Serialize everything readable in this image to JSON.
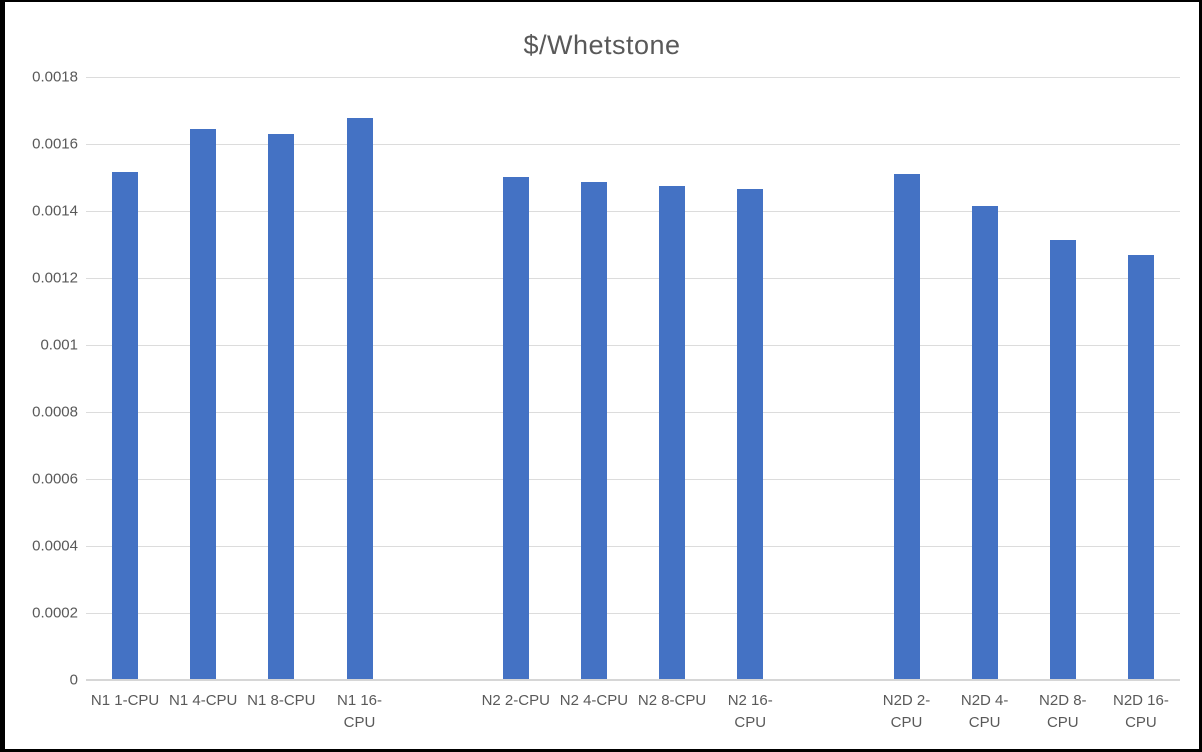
{
  "window": {
    "background_color": "#ffffff",
    "frame_color": "#000000"
  },
  "chart_data": {
    "type": "bar",
    "title": "$/Whetstone",
    "xlabel": "",
    "ylabel": "",
    "legend": "none",
    "grid": true,
    "ylim": [
      0,
      0.0018
    ],
    "ytick_step": 0.0002,
    "ytick_labels": [
      "0",
      "0.0002",
      "0.0004",
      "0.0006",
      "0.0008",
      "0.001",
      "0.0012",
      "0.0014",
      "0.0016",
      "0.0018"
    ],
    "bar_color": "#4472C4",
    "gridline_color": "#DCDCDC",
    "axis_line_color": "#D6D6D6",
    "text_color": "#595959",
    "groups": [
      {
        "name": "N1",
        "categories": [
          "N1 1-CPU",
          "N1 4-CPU",
          "N1 8-CPU",
          "N1 16-CPU"
        ],
        "label_lines": [
          [
            "N1 1-CPU"
          ],
          [
            "N1 4-CPU"
          ],
          [
            "N1 8-CPU"
          ],
          [
            "N1 16-",
            "CPU"
          ]
        ],
        "values": [
          0.001515,
          0.001645,
          0.00163,
          0.001677
        ]
      },
      {
        "name": "N2",
        "categories": [
          "N2 2-CPU",
          "N2 4-CPU",
          "N2 8-CPU",
          "N2 16-CPU"
        ],
        "label_lines": [
          [
            "N2 2-CPU"
          ],
          [
            "N2 4-CPU"
          ],
          [
            "N2 8-CPU"
          ],
          [
            "N2 16-",
            "CPU"
          ]
        ],
        "values": [
          0.001503,
          0.001488,
          0.001474,
          0.001467
        ]
      },
      {
        "name": "N2D",
        "categories": [
          "N2D 2-CPU",
          "N2D 4-CPU",
          "N2D 8-CPU",
          "N2D 16-CPU"
        ],
        "label_lines": [
          [
            "N2D 2-",
            "CPU"
          ],
          [
            "N2D 4-",
            "CPU"
          ],
          [
            "N2D 8-",
            "CPU"
          ],
          [
            "N2D 16-",
            "CPU"
          ]
        ],
        "values": [
          0.00151,
          0.001416,
          0.001312,
          0.001269
        ]
      }
    ]
  }
}
